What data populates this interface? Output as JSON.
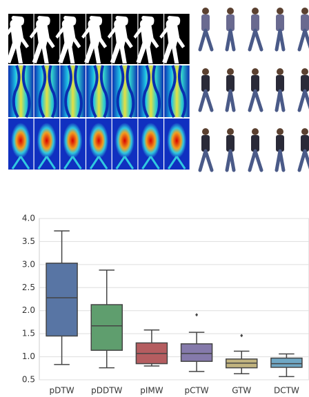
{
  "chart_data": {
    "type": "box",
    "categories": [
      "pDTW",
      "pDDTW",
      "pIMW",
      "pCTW",
      "GTW",
      "DCTW"
    ],
    "colors": [
      "#5875a4",
      "#5f9e6e",
      "#b55d60",
      "#857aab",
      "#c1b37f",
      "#6fa7c4"
    ],
    "boxes": [
      {
        "low": 0.83,
        "q1": 1.45,
        "median": 2.28,
        "q3": 3.03,
        "high": 3.73,
        "outliers": []
      },
      {
        "low": 0.76,
        "q1": 1.14,
        "median": 1.67,
        "q3": 2.13,
        "high": 2.88,
        "outliers": []
      },
      {
        "low": 0.8,
        "q1": 0.85,
        "median": 1.07,
        "q3": 1.3,
        "high": 1.58,
        "outliers": []
      },
      {
        "low": 0.68,
        "q1": 0.9,
        "median": 1.07,
        "q3": 1.28,
        "high": 1.53,
        "outliers": [
          1.91
        ]
      },
      {
        "low": 0.63,
        "q1": 0.76,
        "median": 0.86,
        "q3": 0.95,
        "high": 1.12,
        "outliers": [
          1.46
        ]
      },
      {
        "low": 0.57,
        "q1": 0.77,
        "median": 0.85,
        "q3": 0.97,
        "high": 1.06,
        "outliers": []
      }
    ],
    "ylim": [
      0.5,
      4.0
    ],
    "yticks": [
      {
        "value": 0.5,
        "label": "0.5"
      },
      {
        "value": 1,
        "label": "1.0"
      },
      {
        "value": 1.5,
        "label": "1.5"
      },
      {
        "value": 2,
        "label": "2.0"
      },
      {
        "value": 2.5,
        "label": "2.5"
      },
      {
        "value": 3,
        "label": "3.0"
      },
      {
        "value": 3.5,
        "label": "3.5"
      },
      {
        "value": 4,
        "label": "4.0"
      }
    ],
    "grid": true
  }
}
